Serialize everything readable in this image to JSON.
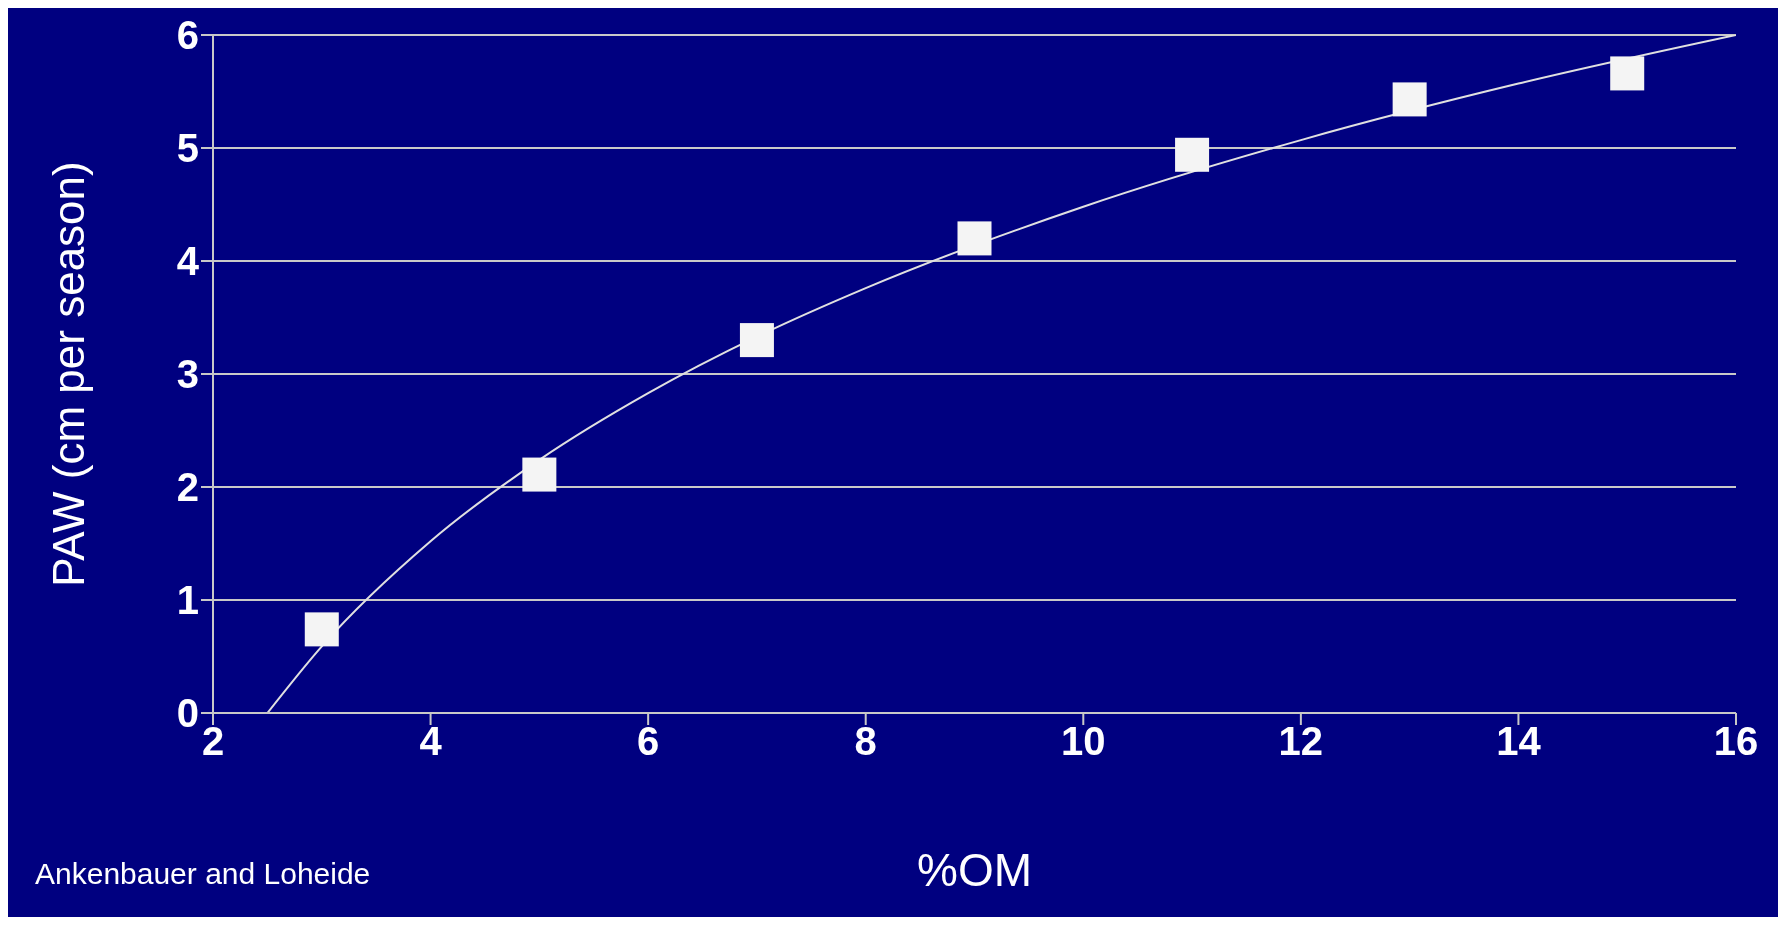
{
  "chart_data": {
    "type": "scatter",
    "xlabel": "%OM",
    "ylabel": "PAW (cm per season)",
    "annotations": [
      "Ankenbauer and Loheide"
    ],
    "x": [
      3,
      5,
      7,
      9,
      11,
      13,
      15
    ],
    "series": [
      {
        "color": "#f4f4f4",
        "marker": "square",
        "values": [
          0.74,
          2.11,
          3.3,
          4.2,
          4.94,
          5.43,
          5.66
        ]
      },
      {
        "type": "line",
        "color": "#e0e0e0",
        "marker": "none",
        "x": [
          2.5,
          3,
          4,
          5,
          6,
          7,
          8,
          10,
          12,
          14,
          16
        ],
        "values": [
          0,
          0.59,
          1.52,
          2.24,
          2.83,
          3.33,
          3.76,
          4.48,
          5.07,
          5.57,
          6
        ]
      }
    ],
    "xlim": [
      2,
      16
    ],
    "xticks": [
      2,
      4,
      6,
      8,
      10,
      12,
      14,
      16
    ],
    "ylim": [
      0,
      6
    ],
    "yticks": [
      0,
      1,
      2,
      3,
      4,
      5,
      6
    ],
    "grid": "y"
  }
}
